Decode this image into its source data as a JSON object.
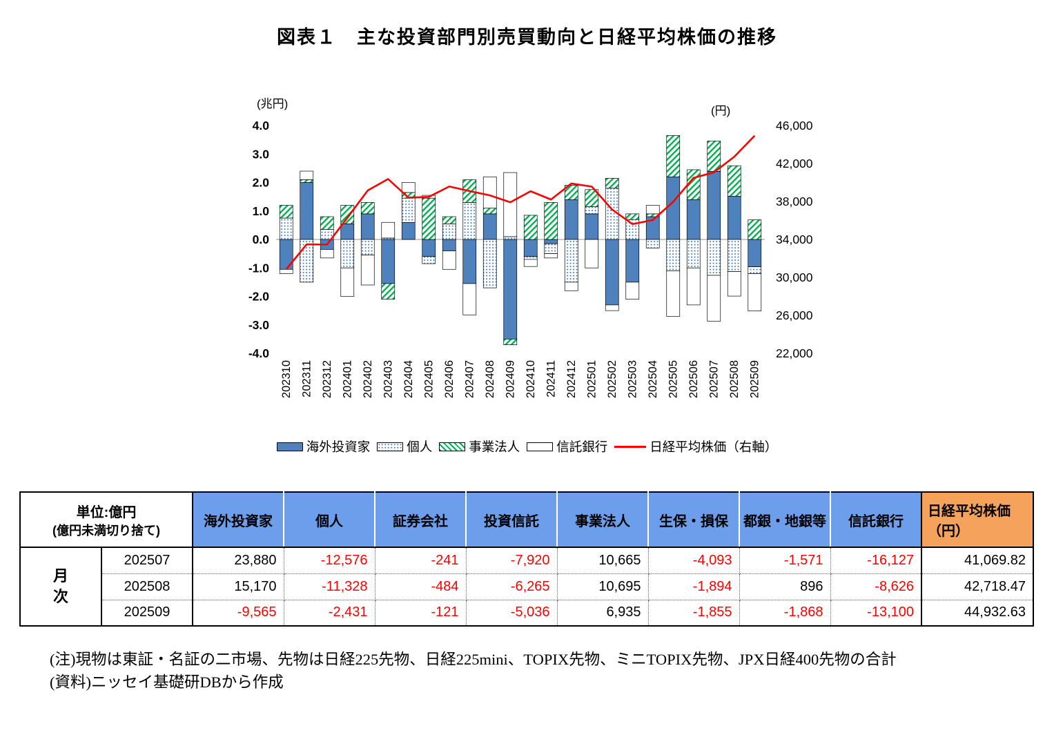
{
  "title": "図表１　主な投資部門別売買動向と日経平均株価の推移",
  "chart_data": {
    "type": "bar",
    "subtype": "stacked-bar-with-line",
    "title": "主な投資部門別売買動向と日経平均株価の推移",
    "left_axis": {
      "label": "(兆円)",
      "min": -4.0,
      "max": 4.0,
      "tick_step": 1.0
    },
    "right_axis": {
      "label": "(円)",
      "min": 22000,
      "max": 46000,
      "tick_step": 4000
    },
    "grid": "zero-line-only",
    "legend_position": "bottom",
    "categories": [
      "202310",
      "202311",
      "202312",
      "202401",
      "202402",
      "202403",
      "202404",
      "202405",
      "202406",
      "202407",
      "202408",
      "202409",
      "202410",
      "202411",
      "202412",
      "202501",
      "202502",
      "202503",
      "202504",
      "202505",
      "202506",
      "202507",
      "202508",
      "202509"
    ],
    "series": [
      {
        "name": "海外投資家",
        "type": "bar",
        "swatch": "blue",
        "fill": "#4F81BD",
        "values": [
          -1.05,
          2.0,
          -0.35,
          0.55,
          0.9,
          -1.55,
          0.6,
          -0.6,
          -0.4,
          -1.55,
          0.9,
          -3.5,
          -0.6,
          -0.15,
          1.4,
          0.9,
          -2.3,
          -1.5,
          0.8,
          2.2,
          1.4,
          2.39,
          1.52,
          -0.96
        ]
      },
      {
        "name": "個人",
        "type": "bar",
        "swatch": "dots",
        "fill": "pattern:dots",
        "values": [
          0.75,
          -1.5,
          0.35,
          -1.0,
          -0.55,
          0.05,
          0.85,
          -0.25,
          0.55,
          1.3,
          -1.7,
          0.1,
          -0.1,
          -0.35,
          -1.5,
          0.25,
          1.8,
          0.7,
          -0.3,
          -1.1,
          -1.0,
          -1.26,
          -1.13,
          -0.24
        ]
      },
      {
        "name": "事業法人",
        "type": "bar",
        "swatch": "hatch",
        "fill": "pattern:hatch",
        "values": [
          0.45,
          0.1,
          0.45,
          0.65,
          0.4,
          -0.55,
          0.2,
          1.45,
          0.25,
          0.8,
          0.2,
          -0.2,
          0.85,
          1.3,
          0.5,
          0.6,
          0.35,
          0.2,
          0.1,
          1.45,
          1.05,
          1.07,
          1.07,
          0.69
        ]
      },
      {
        "name": "信託銀行",
        "type": "bar",
        "swatch": "white",
        "fill": "#FFFFFF",
        "values": [
          -0.15,
          0.3,
          -0.3,
          -1.0,
          -1.05,
          0.55,
          0.35,
          0.1,
          -0.65,
          -1.1,
          1.1,
          2.25,
          -0.25,
          -0.15,
          -0.3,
          -1.0,
          -0.2,
          -0.6,
          0.3,
          -1.6,
          -1.3,
          -1.61,
          -0.86,
          -1.31
        ]
      },
      {
        "name": "日経平均株価（右軸）",
        "type": "line",
        "swatch": "line",
        "color": "#FF0000",
        "axis": "right",
        "values": [
          30858,
          33487,
          33464,
          36287,
          39166,
          40369,
          38406,
          38487,
          39583,
          39102,
          38648,
          37920,
          39081,
          38208,
          39895,
          39572,
          37156,
          35618,
          36045,
          37965,
          40487,
          41069.82,
          42718.47,
          44932.63
        ]
      }
    ],
    "colors": {
      "bar_blue": "#4F81BD",
      "hatch_green": "#00B050",
      "line_red": "#FF0000"
    }
  },
  "table": {
    "unit_line1": "単位:億円",
    "unit_line2": "(億円未満切り捨て)",
    "row_group_label": "月次",
    "columns": [
      "海外投資家",
      "個人",
      "証券会社",
      "投資信託",
      "事業法人",
      "生保・損保",
      "都銀・地銀等",
      "信託銀行"
    ],
    "last_column_line1": "日経平均株価",
    "last_column_line2": "（円）",
    "rows": [
      {
        "month": "202507",
        "values": [
          "23,880",
          "-12,576",
          "-241",
          "-7,920",
          "10,665",
          "-4,093",
          "-1,571",
          "-16,127"
        ],
        "nikkei": "41,069.82"
      },
      {
        "month": "202508",
        "values": [
          "15,170",
          "-11,328",
          "-484",
          "-6,265",
          "10,695",
          "-1,894",
          "896",
          "-8,626"
        ],
        "nikkei": "42,718.47"
      },
      {
        "month": "202509",
        "values": [
          "-9,565",
          "-2,431",
          "-121",
          "-5,036",
          "6,935",
          "-1,855",
          "-1,868",
          "-13,100"
        ],
        "nikkei": "44,932.63"
      }
    ]
  },
  "notes": [
    "(注)現物は東証・名証の二市場、先物は日経225先物、日経225mini、TOPIX先物、ミニTOPIX先物、JPX日経400先物の合計",
    "(資料)ニッセイ基礎研DBから作成"
  ]
}
